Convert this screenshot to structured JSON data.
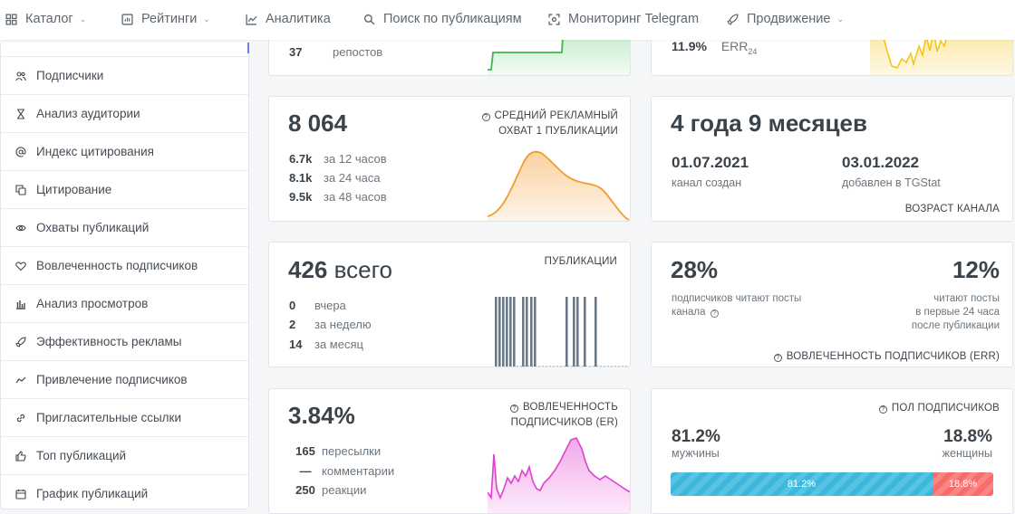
{
  "nav": {
    "items": [
      {
        "label": "Каталог",
        "icon": "grid-icon",
        "dropdown": true
      },
      {
        "label": "Рейтинги",
        "icon": "rating-icon",
        "dropdown": true
      },
      {
        "label": "Аналитика",
        "icon": "line-chart-icon",
        "dropdown": false
      },
      {
        "label": "Поиск по публикациям",
        "icon": "search-icon",
        "dropdown": false
      },
      {
        "label": "Мониторинг Telegram",
        "icon": "monitor-icon",
        "dropdown": false
      },
      {
        "label": "Продвижение",
        "icon": "rocket-icon",
        "dropdown": true
      }
    ]
  },
  "sidebar": {
    "items": [
      {
        "label": "Подписчики",
        "icon": "users-icon"
      },
      {
        "label": "Анализ аудитории",
        "icon": "hourglass-icon"
      },
      {
        "label": "Индекс цитирования",
        "icon": "at-icon"
      },
      {
        "label": "Цитирование",
        "icon": "copy-icon"
      },
      {
        "label": "Охваты публикаций",
        "icon": "eye-icon"
      },
      {
        "label": "Вовлеченность подписчиков",
        "icon": "heart-icon"
      },
      {
        "label": "Анализ просмотров",
        "icon": "bar-chart-icon"
      },
      {
        "label": "Эффективность рекламы",
        "icon": "rocket-icon"
      },
      {
        "label": "Привлечение подписчиков",
        "icon": "trend-icon"
      },
      {
        "label": "Пригласительные ссылки",
        "icon": "link-icon"
      },
      {
        "label": "Топ публикаций",
        "icon": "thumbs-up-icon"
      },
      {
        "label": "График публикаций",
        "icon": "calendar-icon"
      }
    ]
  },
  "reposts": {
    "value": "37",
    "label": "репостов"
  },
  "err24": {
    "value": "11.9%",
    "label": "ERR",
    "sub": "24"
  },
  "reach": {
    "value": "8 064",
    "title_line1": "СРЕДНИЙ РЕКЛАМНЫЙ",
    "title_line2": "ОХВАТ 1 ПУБЛИКАЦИИ",
    "rows": [
      {
        "value": "6.7k",
        "label": "за 12 часов"
      },
      {
        "value": "8.1k",
        "label": "за 24 часа"
      },
      {
        "value": "9.5k",
        "label": "за 48 часов"
      }
    ]
  },
  "age": {
    "value": "4 года 9 месяцев",
    "created_date": "01.07.2021",
    "created_label": "канал создан",
    "added_date": "03.01.2022",
    "added_label": "добавлен в TGStat",
    "title": "ВОЗРАСТ КАНАЛА"
  },
  "posts": {
    "value": "426",
    "unit": "всего",
    "title": "ПУБЛИКАЦИИ",
    "rows": [
      {
        "value": "0",
        "label": "вчера"
      },
      {
        "value": "2",
        "label": "за неделю"
      },
      {
        "value": "14",
        "label": "за месяц"
      }
    ]
  },
  "err": {
    "left_value": "28%",
    "left_label_1": "подписчиков читают посты",
    "left_label_2": "канала",
    "right_value": "12%",
    "right_label_1": "читают посты",
    "right_label_2": "в первые 24 часа",
    "right_label_3": "после публикации",
    "title": "ВОВЛЕЧЕННОСТЬ ПОДПИСЧИКОВ (ERR)"
  },
  "er": {
    "value": "3.84%",
    "title_line1": "ВОВЛЕЧЕННОСТЬ",
    "title_line2": "ПОДПИСЧИКОВ (ER)",
    "rows": [
      {
        "value": "165",
        "label": "пересылки"
      },
      {
        "value": "—",
        "label": "комментарии"
      },
      {
        "value": "250",
        "label": "реакции"
      }
    ]
  },
  "gender": {
    "title": "ПОЛ ПОДПИСЧИКОВ",
    "male_value": "81.2%",
    "male_label": "мужчины",
    "female_value": "18.8%",
    "female_label": "женщины",
    "male_fraction": 0.812,
    "female_fraction": 0.188,
    "bar_male_label": "81.2%",
    "bar_female_label": "18.8%",
    "male_color": "#3eb7dc",
    "female_color": "#f76b6b"
  },
  "colors": {
    "reach_chart": "#f29b2e",
    "reposts_chart": "#3cb54a",
    "err24_chart": "#f5c518",
    "posts_chart": "#6c7a87",
    "er_chart": "#e040d0"
  }
}
